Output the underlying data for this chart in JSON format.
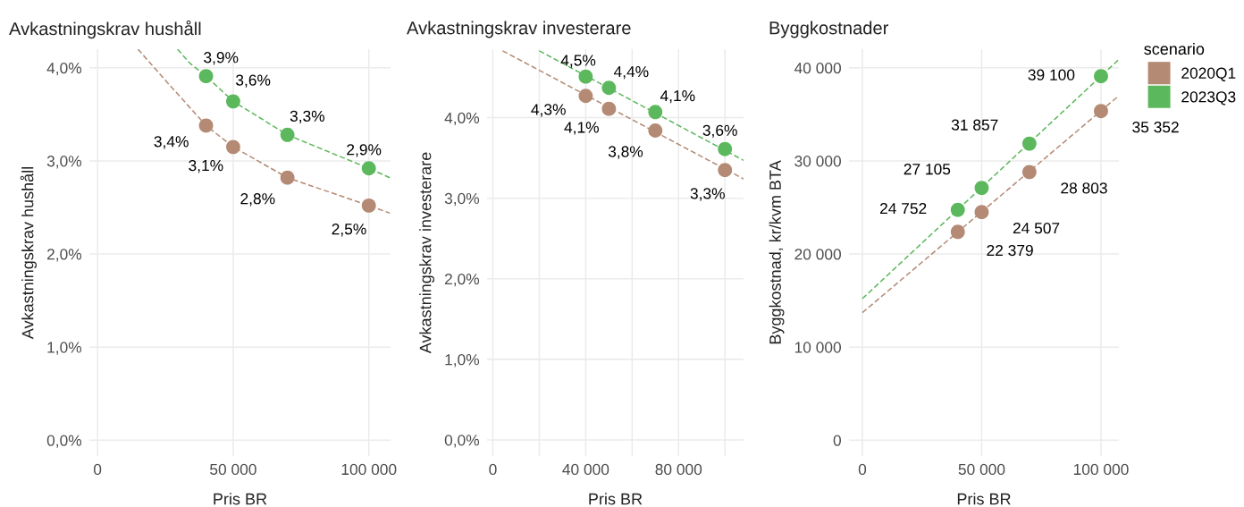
{
  "chart_data": [
    {
      "type": "scatter",
      "title": "Avkastningskrav hushåll",
      "xlabel": "Pris BR",
      "ylabel": "Avkastningskrav hushåll",
      "marker": "circle",
      "grid": true,
      "xlim": [
        -3000,
        108000
      ],
      "xticks": [
        0,
        {
          "value": 50000,
          "label": "50 000"
        },
        {
          "value": 100000,
          "label": "100 000"
        }
      ],
      "ylim": [
        -0.17,
        4.2
      ],
      "yticks": [
        {
          "value": 0,
          "label": "0,0%"
        },
        {
          "value": 1,
          "label": "1,0%"
        },
        {
          "value": 2,
          "label": "2,0%"
        },
        {
          "value": 3,
          "label": "3,0%"
        },
        {
          "value": 4,
          "label": "4,0%"
        }
      ],
      "series": [
        {
          "type": "line",
          "marker": "none",
          "color": "#b48a74",
          "line_style": "dashed",
          "x": [
            14900,
            25500,
            40000,
            50000,
            70000,
            100000,
            107700
          ],
          "values": [
            4.2,
            3.85,
            3.38,
            3.15,
            2.82,
            2.52,
            2.44
          ]
        },
        {
          "type": "line",
          "marker": "none",
          "color": "#5cb85c",
          "line_style": "dashed",
          "x": [
            29500,
            34000,
            40000,
            50000,
            70000,
            100000,
            107700
          ],
          "values": [
            4.2,
            4.05,
            3.91,
            3.64,
            3.28,
            2.92,
            2.82
          ]
        },
        {
          "color": "#b48a74",
          "x": [
            40000,
            50000,
            70000,
            100000
          ],
          "values": [
            3.38,
            3.15,
            2.82,
            2.52
          ],
          "value_labels": [
            "3,4%",
            "3,1%",
            "2,8%",
            "2,5%"
          ]
        },
        {
          "color": "#5cb85c",
          "x": [
            40000,
            50000,
            70000,
            100000
          ],
          "values": [
            3.91,
            3.64,
            3.28,
            2.92
          ],
          "value_labels": [
            "3,9%",
            "3,6%",
            "3,3%",
            "2,9%"
          ]
        }
      ]
    },
    {
      "type": "scatter",
      "title": "Avkastningskrav investerare",
      "xlabel": "Pris BR",
      "ylabel": "Avkastningskrav investerare",
      "marker": "circle",
      "grid": true,
      "xlim": [
        -2500,
        108000
      ],
      "xticks": [
        0,
        {
          "value": 20000,
          "label": null
        },
        {
          "value": 40000,
          "label": "40 000"
        },
        {
          "value": 60000,
          "label": null
        },
        {
          "value": 80000,
          "label": "80 000"
        },
        {
          "value": 100000,
          "label": null
        }
      ],
      "ylim": [
        -0.2,
        4.85
      ],
      "yticks": [
        {
          "value": 0,
          "label": "0,0%"
        },
        {
          "value": 1,
          "label": "1,0%"
        },
        {
          "value": 2,
          "label": "2,0%"
        },
        {
          "value": 3,
          "label": "3,0%"
        },
        {
          "value": 4,
          "label": "4,0%"
        }
      ],
      "series": [
        {
          "type": "line",
          "marker": "none",
          "color": "#b48a74",
          "line_style": "dashed",
          "x": [
            4200,
            108000
          ],
          "values": [
            4.83,
            3.24
          ]
        },
        {
          "type": "line",
          "marker": "none",
          "color": "#5cb85c",
          "line_style": "dashed",
          "x": [
            20000,
            108000
          ],
          "values": [
            4.83,
            3.47
          ]
        },
        {
          "color": "#b48a74",
          "x": [
            40000,
            50000,
            70000,
            100000
          ],
          "values": [
            4.27,
            4.11,
            3.84,
            3.35
          ],
          "value_labels": [
            "4,3%",
            "4,1%",
            "3,8%",
            "3,3%"
          ]
        },
        {
          "color": "#5cb85c",
          "x": [
            40000,
            50000,
            70000,
            100000
          ],
          "values": [
            4.51,
            4.37,
            4.07,
            3.61
          ],
          "value_labels": [
            "4,5%",
            "4,4%",
            "4,1%",
            "3,6%"
          ]
        }
      ]
    },
    {
      "type": "scatter",
      "title": "Byggkostnader",
      "xlabel": "Pris BR",
      "ylabel": "Byggkostnad, kr/kvm BTA",
      "marker": "circle",
      "grid": true,
      "legend": "right",
      "legend_title": "scenario",
      "xlim": [
        -5600,
        107500
      ],
      "xticks": [
        0,
        {
          "value": 50000,
          "label": "50 000"
        },
        {
          "value": 100000,
          "label": "100 000"
        }
      ],
      "ylim": [
        -1700,
        42000
      ],
      "yticks": [
        0,
        {
          "value": 10000,
          "label": "10 000"
        },
        {
          "value": 20000,
          "label": "20 000"
        },
        {
          "value": 30000,
          "label": "30 000"
        },
        {
          "value": 40000,
          "label": "40 000"
        }
      ],
      "series": [
        {
          "type": "line",
          "marker": "none",
          "color": "#b48a74",
          "line_style": "dashed",
          "x": [
            0,
            107500
          ],
          "values": [
            13700,
            37000
          ]
        },
        {
          "type": "line",
          "marker": "none",
          "color": "#5cb85c",
          "line_style": "dashed",
          "x": [
            0,
            107500
          ],
          "values": [
            15200,
            40900
          ]
        },
        {
          "name": "2020Q1",
          "color": "#b48a74",
          "x": [
            40000,
            50000,
            70000,
            100000
          ],
          "values": [
            22379,
            24507,
            28803,
            35352
          ],
          "value_labels": [
            "22 379",
            "24 507",
            "28 803",
            "35 352"
          ]
        },
        {
          "name": "2023Q3",
          "color": "#5cb85c",
          "x": [
            40000,
            50000,
            70000,
            100000
          ],
          "values": [
            24752,
            27105,
            31857,
            39100
          ],
          "value_labels": [
            "24 752",
            "27 105",
            "31 857",
            "39 100"
          ]
        }
      ]
    }
  ]
}
